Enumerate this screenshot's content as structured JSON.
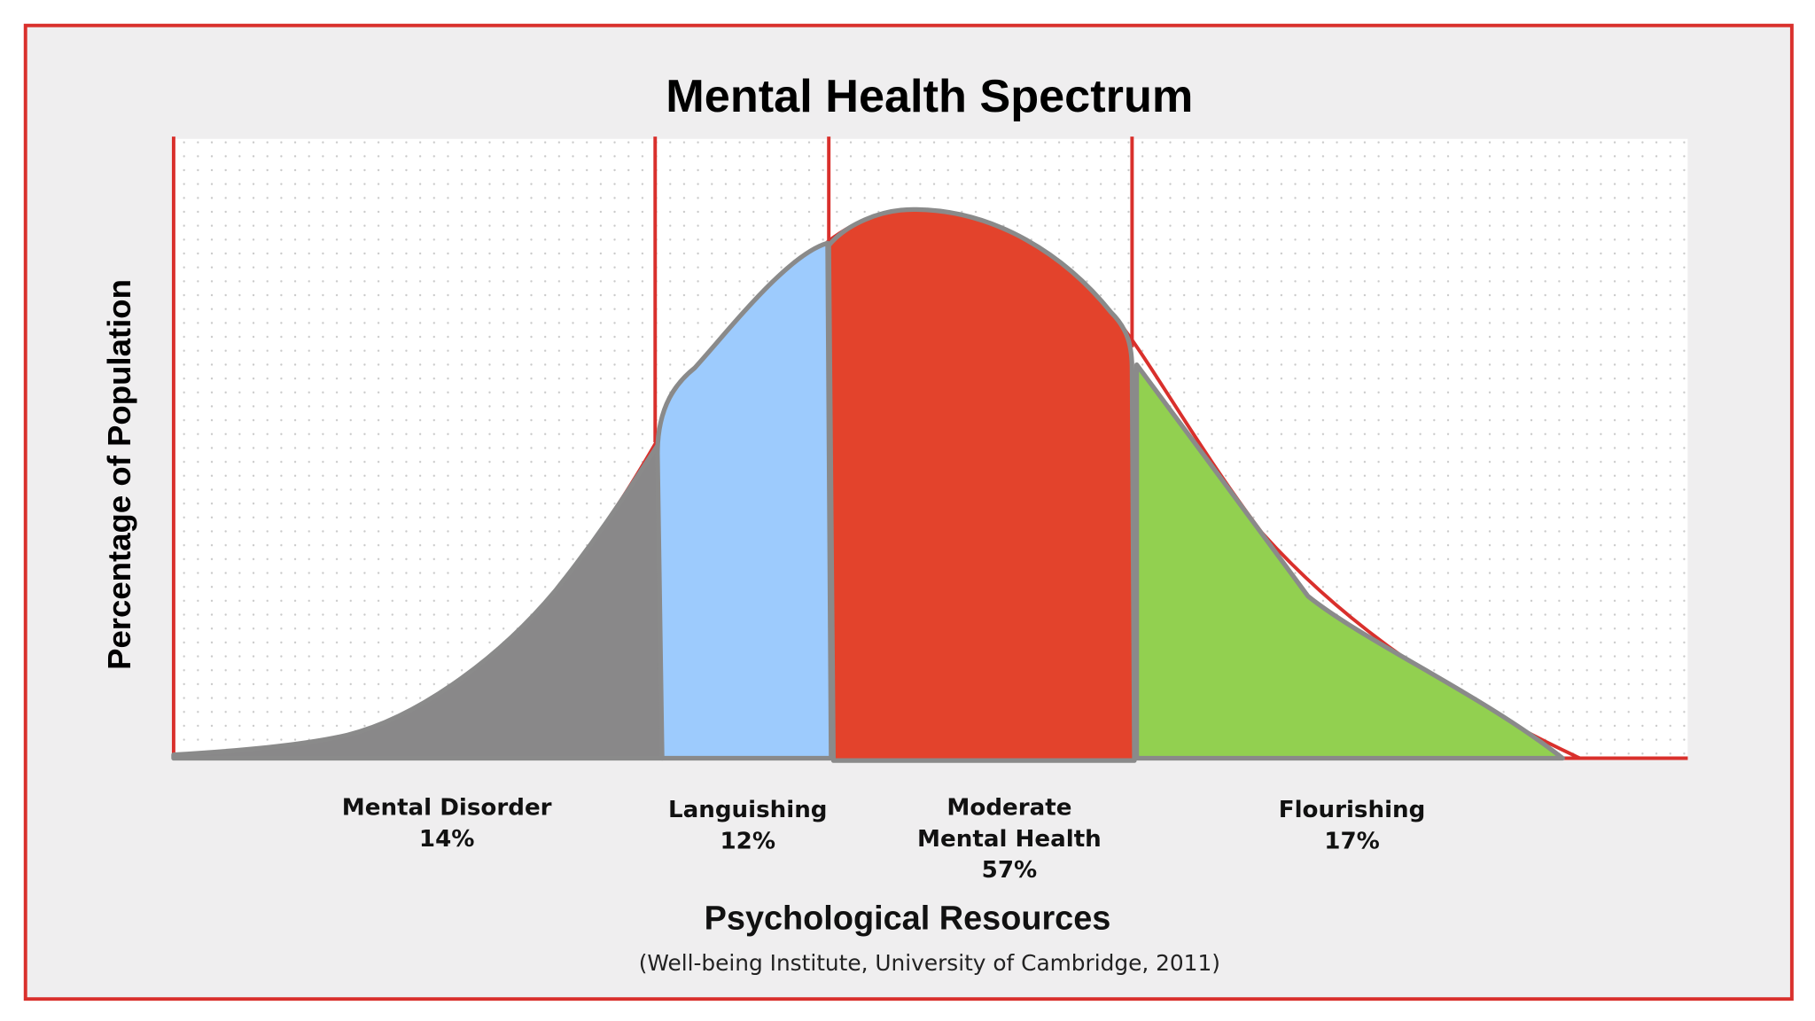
{
  "chart_data": {
    "type": "spectrum",
    "title": "Mental Health Spectrum",
    "y_label": "Percentage of Population",
    "x_label": "Psychological Resources",
    "source": "(Well-being Institute, University of Cambridge, 2011)",
    "categories": [
      "Mental Disorder",
      "Languishing",
      "Moderate Mental Health",
      "Flourishing"
    ],
    "values": [
      14,
      12,
      57,
      17
    ],
    "value_labels": [
      "14%",
      "12%",
      "57%",
      "17%"
    ],
    "colors": [
      "#898889",
      "#9dcbfd",
      "#e3432c",
      "#92d050"
    ]
  }
}
